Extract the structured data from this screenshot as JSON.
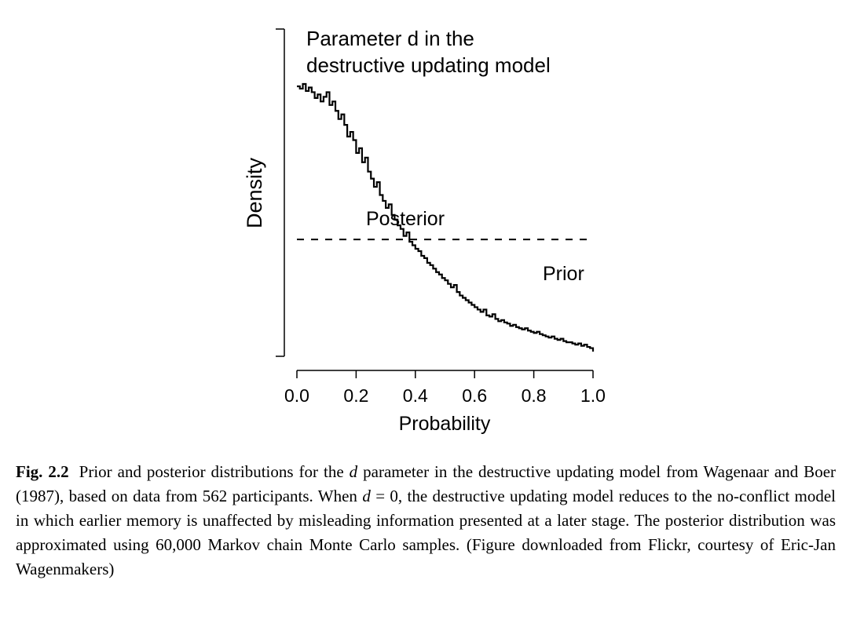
{
  "chart_data": {
    "type": "line",
    "title": "Parameter d in the destructive updating model",
    "title_lines": [
      "Parameter d in the",
      "destructive updating model"
    ],
    "xlabel": "Probability",
    "ylabel": "Density",
    "xlim": [
      0,
      1
    ],
    "x_ticks": [
      "0.0",
      "0.2",
      "0.4",
      "0.6",
      "0.8",
      "1.0"
    ],
    "y_ticks_labeled": false,
    "grid": false,
    "series": [
      {
        "name": "Posterior",
        "style": "solid-step",
        "x": [
          0.0,
          0.01,
          0.02,
          0.03,
          0.04,
          0.05,
          0.06,
          0.07,
          0.08,
          0.09,
          0.1,
          0.11,
          0.12,
          0.13,
          0.14,
          0.15,
          0.16,
          0.17,
          0.18,
          0.19,
          0.2,
          0.21,
          0.22,
          0.23,
          0.24,
          0.25,
          0.26,
          0.27,
          0.28,
          0.29,
          0.3,
          0.31,
          0.32,
          0.33,
          0.34,
          0.35,
          0.36,
          0.37,
          0.38,
          0.39,
          0.4,
          0.41,
          0.42,
          0.43,
          0.44,
          0.45,
          0.46,
          0.47,
          0.48,
          0.49,
          0.5,
          0.51,
          0.52,
          0.53,
          0.54,
          0.55,
          0.56,
          0.57,
          0.58,
          0.59,
          0.6,
          0.61,
          0.62,
          0.63,
          0.64,
          0.65,
          0.66,
          0.67,
          0.68,
          0.69,
          0.7,
          0.71,
          0.72,
          0.73,
          0.74,
          0.75,
          0.76,
          0.77,
          0.78,
          0.79,
          0.8,
          0.81,
          0.82,
          0.83,
          0.84,
          0.85,
          0.86,
          0.87,
          0.88,
          0.89,
          0.9,
          0.91,
          0.92,
          0.93,
          0.94,
          0.95,
          0.96,
          0.97,
          0.98,
          0.99,
          1.0
        ],
        "y": [
          2.31,
          2.29,
          2.33,
          2.27,
          2.3,
          2.26,
          2.21,
          2.24,
          2.18,
          2.22,
          2.26,
          2.15,
          2.18,
          2.1,
          2.03,
          2.07,
          1.98,
          1.88,
          1.92,
          1.85,
          1.74,
          1.78,
          1.66,
          1.7,
          1.58,
          1.52,
          1.45,
          1.49,
          1.38,
          1.33,
          1.27,
          1.3,
          1.21,
          1.17,
          1.12,
          1.09,
          1.03,
          1.06,
          0.98,
          0.95,
          0.92,
          0.9,
          0.86,
          0.84,
          0.8,
          0.78,
          0.75,
          0.72,
          0.7,
          0.67,
          0.65,
          0.62,
          0.59,
          0.61,
          0.55,
          0.52,
          0.5,
          0.48,
          0.46,
          0.44,
          0.42,
          0.4,
          0.38,
          0.4,
          0.35,
          0.34,
          0.36,
          0.32,
          0.3,
          0.31,
          0.29,
          0.28,
          0.26,
          0.27,
          0.25,
          0.24,
          0.23,
          0.24,
          0.22,
          0.21,
          0.2,
          0.21,
          0.19,
          0.18,
          0.17,
          0.16,
          0.17,
          0.15,
          0.14,
          0.15,
          0.13,
          0.12,
          0.12,
          0.11,
          0.1,
          0.11,
          0.09,
          0.1,
          0.08,
          0.07,
          0.04
        ]
      },
      {
        "name": "Prior",
        "style": "dashed",
        "x": [
          0.0,
          1.0
        ],
        "y": [
          1.0,
          1.0
        ]
      }
    ],
    "ylim": [
      0,
      2.8
    ]
  },
  "caption": {
    "label": "Fig. 2.2",
    "part1": "Prior and posterior distributions for the",
    "param": "d",
    "part2": "parameter in the destructive updating model from Wagenaar and Boer (1987), based on data from 562 participants. When",
    "eq_var": "d",
    "eq_rest": "= 0,",
    "part3": "the destructive updating model reduces to the no-conflict model in which earlier memory is unaffected by misleading information presented at a later stage. The posterior distribution was approximated using 60,000 Markov chain Monte Carlo samples. (Figure downloaded from Flickr, courtesy of Eric-Jan Wagenmakers)"
  }
}
